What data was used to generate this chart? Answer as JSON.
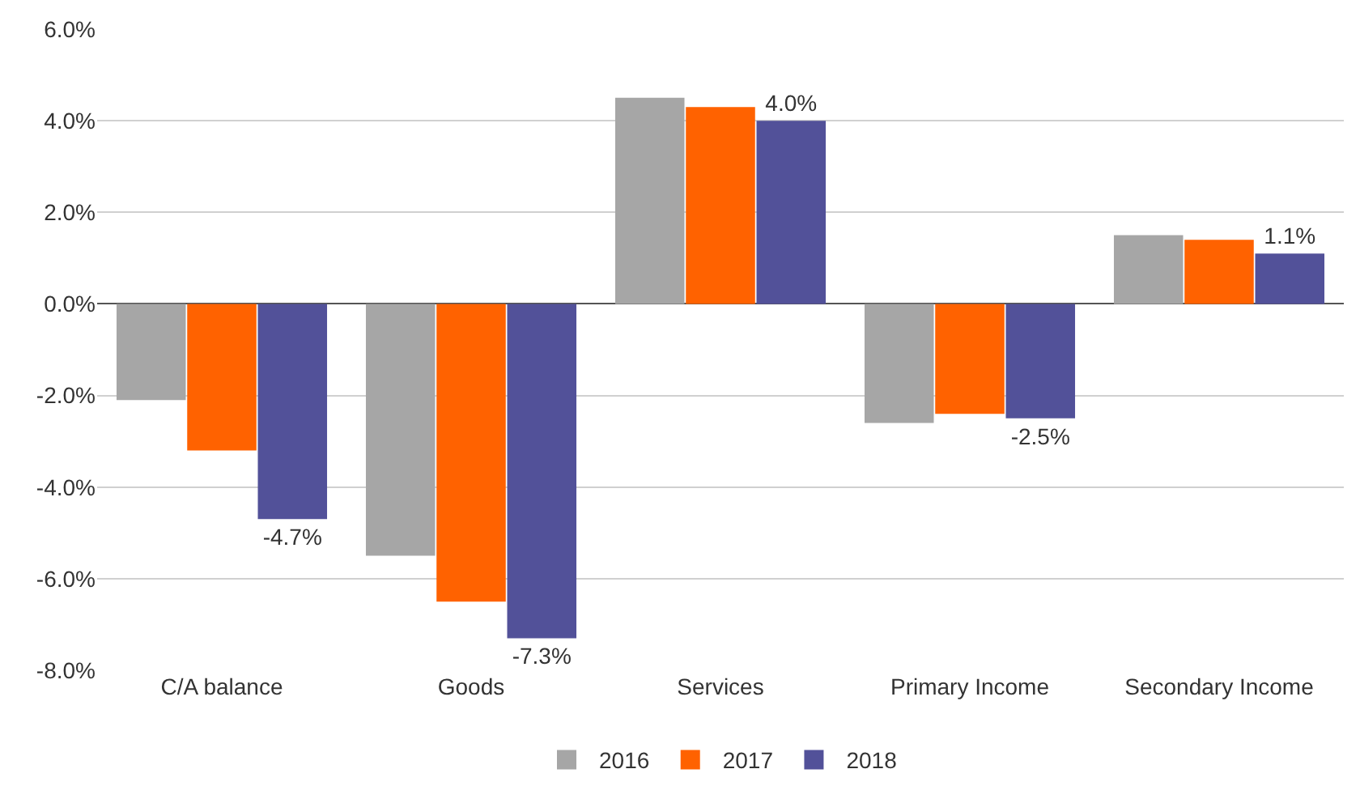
{
  "chart_data": {
    "type": "bar",
    "categories": [
      "C/A balance",
      "Goods",
      "Services",
      "Primary Income",
      "Secondary Income"
    ],
    "series": [
      {
        "name": "2016",
        "color": "#a6a6a6",
        "values": [
          -2.1,
          -5.5,
          4.5,
          -2.6,
          1.5
        ]
      },
      {
        "name": "2017",
        "color": "#ff6200",
        "values": [
          -3.2,
          -6.5,
          4.3,
          -2.4,
          1.4
        ]
      },
      {
        "name": "2018",
        "color": "#525199",
        "values": [
          -4.7,
          -7.3,
          4.0,
          -2.5,
          1.1
        ],
        "value_labels": [
          "-4.7%",
          "-7.3%",
          "4.0%",
          "-2.5%",
          "1.1%"
        ]
      }
    ],
    "ylim": [
      -8,
      6
    ],
    "yticks": [
      {
        "value": -8,
        "label": "-8.0%"
      },
      {
        "value": -6,
        "label": "-6.0%"
      },
      {
        "value": -4,
        "label": "-4.0%"
      },
      {
        "value": -2,
        "label": "-2.0%"
      },
      {
        "value": 0,
        "label": "0.0%"
      },
      {
        "value": 2,
        "label": "2.0%"
      },
      {
        "value": 4,
        "label": "4.0%"
      },
      {
        "value": 6,
        "label": "6.0%"
      }
    ],
    "grid": "y",
    "legend": "bottom"
  }
}
